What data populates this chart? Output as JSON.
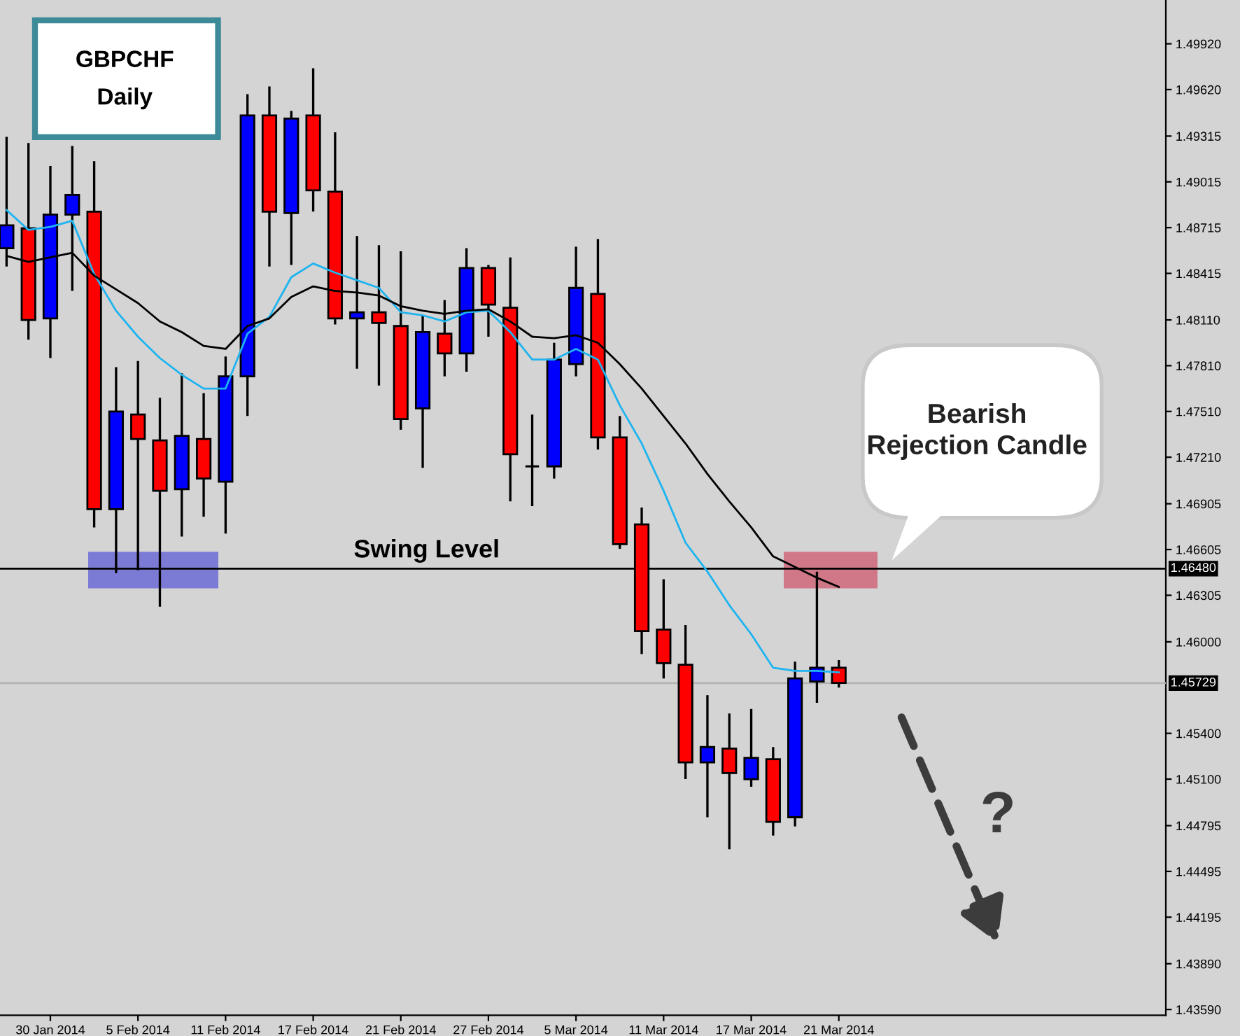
{
  "chart_data": {
    "type": "candlestick",
    "title": "GBPCHF",
    "subtitle": "Daily",
    "categories": [
      null,
      null,
      "30 Jan 2014",
      null,
      null,
      null,
      "5 Feb 2014",
      null,
      null,
      null,
      "11 Feb 2014",
      null,
      null,
      null,
      "17 Feb 2014",
      null,
      null,
      null,
      "21 Feb 2014",
      null,
      null,
      null,
      "27 Feb 2014",
      null,
      null,
      null,
      "5 Mar 2014",
      null,
      null,
      null,
      "11 Mar 2014",
      null,
      null,
      null,
      "17 Mar 2014",
      null,
      null,
      null,
      "21 Mar 2014"
    ],
    "ohlc": [
      [
        1.4858,
        1.4931,
        1.4846,
        1.4873
      ],
      [
        1.4871,
        1.4927,
        1.4798,
        1.4811
      ],
      [
        1.4812,
        1.4912,
        1.4786,
        1.488
      ],
      [
        1.488,
        1.4925,
        1.483,
        1.4893
      ],
      [
        1.4882,
        1.4915,
        1.4675,
        1.4687
      ],
      [
        1.4687,
        1.478,
        1.4645,
        1.4751
      ],
      [
        1.4749,
        1.4784,
        1.4647,
        1.4733
      ],
      [
        1.4732,
        1.476,
        1.4623,
        1.4699
      ],
      [
        1.47,
        1.4776,
        1.4669,
        1.4735
      ],
      [
        1.4733,
        1.4763,
        1.4682,
        1.4707
      ],
      [
        1.4705,
        1.4787,
        1.4671,
        1.4774
      ],
      [
        1.4774,
        1.4959,
        1.4748,
        1.4945
      ],
      [
        1.4945,
        1.4964,
        1.4846,
        1.4882
      ],
      [
        1.4881,
        1.4948,
        1.4847,
        1.4943
      ],
      [
        1.4945,
        1.4976,
        1.4882,
        1.4896
      ],
      [
        1.4895,
        1.4934,
        1.4808,
        1.4812
      ],
      [
        1.4812,
        1.4866,
        1.4779,
        1.4816
      ],
      [
        1.4816,
        1.486,
        1.4768,
        1.4809
      ],
      [
        1.4807,
        1.4856,
        1.4739,
        1.4746
      ],
      [
        1.4753,
        1.4814,
        1.4714,
        1.4803
      ],
      [
        1.4802,
        1.4824,
        1.4774,
        1.4789
      ],
      [
        1.4789,
        1.4858,
        1.4777,
        1.4845
      ],
      [
        1.4845,
        1.4847,
        1.48,
        1.4821
      ],
      [
        1.4819,
        1.4852,
        1.4692,
        1.4723
      ],
      [
        1.4715,
        1.4749,
        1.4689,
        1.4715
      ],
      [
        1.4715,
        1.4796,
        1.4707,
        1.4785
      ],
      [
        1.4782,
        1.4859,
        1.4774,
        1.4832
      ],
      [
        1.4828,
        1.4864,
        1.4726,
        1.4734
      ],
      [
        1.4734,
        1.4748,
        1.4661,
        1.4664
      ],
      [
        1.4677,
        1.4688,
        1.4592,
        1.4607
      ],
      [
        1.4608,
        1.4641,
        1.4576,
        1.4586
      ],
      [
        1.4585,
        1.4611,
        1.451,
        1.4521
      ],
      [
        1.4521,
        1.4565,
        1.4485,
        1.4531
      ],
      [
        1.453,
        1.4553,
        1.4464,
        1.4514
      ],
      [
        1.451,
        1.4556,
        1.4505,
        1.4524
      ],
      [
        1.4523,
        1.4531,
        1.4473,
        1.4482
      ],
      [
        1.4485,
        1.4587,
        1.4479,
        1.4576
      ],
      [
        1.4574,
        1.4646,
        1.456,
        1.4583
      ],
      [
        1.4583,
        1.4588,
        1.457,
        1.4573
      ]
    ],
    "colors": [
      "#0000ff",
      "#ff0000",
      "#0000ff",
      "#0000ff",
      "#ff0000",
      "#0000ff",
      "#ff0000",
      "#ff0000",
      "#0000ff",
      "#ff0000",
      "#0000ff",
      "#0000ff",
      "#ff0000",
      "#0000ff",
      "#ff0000",
      "#ff0000",
      "#0000ff",
      "#ff0000",
      "#ff0000",
      "#0000ff",
      "#ff0000",
      "#0000ff",
      "#ff0000",
      "#ff0000",
      "#000000",
      "#0000ff",
      "#0000ff",
      "#ff0000",
      "#ff0000",
      "#ff0000",
      "#ff0000",
      "#ff0000",
      "#0000ff",
      "#ff0000",
      "#0000ff",
      "#ff0000",
      "#0000ff",
      "#0000ff",
      "#ff0000"
    ],
    "series": [
      {
        "type": "line",
        "color": "#1eb4f0",
        "values": [
          1.4883,
          1.487,
          1.4872,
          1.4876,
          1.4841,
          1.4817,
          1.48,
          1.4786,
          1.4775,
          1.4766,
          1.4766,
          1.4802,
          1.4813,
          1.4839,
          1.4848,
          1.4842,
          1.4837,
          1.4832,
          1.4816,
          1.4814,
          1.481,
          1.4816,
          1.4817,
          1.4803,
          1.4785,
          1.4785,
          1.4792,
          1.4785,
          1.4755,
          1.473,
          1.4699,
          1.4665,
          1.4646,
          1.4624,
          1.4605,
          1.4583,
          1.4581,
          1.4581,
          1.458
        ]
      },
      {
        "type": "line",
        "color": "#000000",
        "values": [
          1.4853,
          1.4849,
          1.4852,
          1.4855,
          1.484,
          1.4831,
          1.4822,
          1.481,
          1.4803,
          1.4794,
          1.4792,
          1.4807,
          1.4812,
          1.4826,
          1.4833,
          1.483,
          1.4829,
          1.4827,
          1.482,
          1.4817,
          1.4815,
          1.4817,
          1.4818,
          1.481,
          1.48,
          1.4799,
          1.4801,
          1.4796,
          1.4782,
          1.4766,
          1.4748,
          1.473,
          1.471,
          1.4692,
          1.4675,
          1.4656,
          1.4649,
          1.4642,
          1.4636
        ]
      }
    ],
    "ylim": [
      1.43552,
      1.50207
    ],
    "yticks": [
      {
        "value": 1.4992,
        "label": "1.49920"
      },
      {
        "value": 1.4962,
        "label": "1.49620"
      },
      1.49315,
      1.49015,
      1.48715,
      1.48415,
      {
        "value": 1.4811,
        "label": "1.48110"
      },
      {
        "value": 1.4781,
        "label": "1.47810"
      },
      {
        "value": 1.4751,
        "label": "1.47510"
      },
      {
        "value": 1.4721,
        "label": "1.47210"
      },
      1.46905,
      1.46605,
      1.46305,
      {
        "value": 1.46,
        "label": "1.46000"
      },
      {
        "value": 1.454,
        "label": "1.45400"
      },
      {
        "value": 1.451,
        "label": "1.45100"
      },
      1.44795,
      1.44495,
      1.44195,
      {
        "value": 1.4389,
        "label": "1.43890"
      },
      {
        "value": 1.4359,
        "label": "1.43590"
      }
    ],
    "ref_lines": [
      {
        "axis": "y",
        "value": 1.4648,
        "label": "1.46480",
        "color": "#000000"
      },
      {
        "axis": "y",
        "value": 1.45729,
        "label": "1.45729",
        "color": "#b4b4b4"
      }
    ],
    "annotations": [
      {
        "text": "Swing Level",
        "y": 1.4648
      },
      "Bearish\nRejection Candle",
      "?"
    ],
    "grid": false,
    "legend": false
  }
}
